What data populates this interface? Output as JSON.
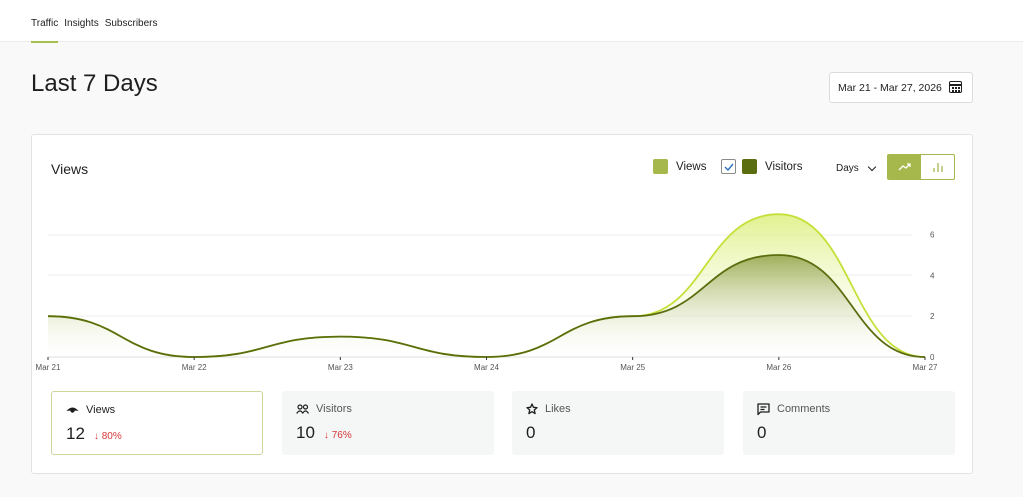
{
  "tabs": [
    {
      "label": "Traffic",
      "active": true
    },
    {
      "label": "Insights",
      "active": false
    },
    {
      "label": "Subscribers",
      "active": false
    }
  ],
  "page_title": "Last 7 Days",
  "date_range": {
    "label": "Mar 21 - Mar 27, 2026",
    "icon": "calendar-icon"
  },
  "chart_card": {
    "title": "Views",
    "legend": [
      {
        "label": "Views",
        "color": "#a6b74b",
        "checkbox": false
      },
      {
        "label": "Visitors",
        "color": "#5a6e0f",
        "checkbox": true,
        "checked": true
      }
    ],
    "period_select": {
      "value": "Days"
    },
    "chart_type_toggle": [
      {
        "name": "line-chart-icon",
        "active": true
      },
      {
        "name": "bar-chart-icon",
        "active": false
      }
    ]
  },
  "chart_data": {
    "type": "area",
    "title": "Views",
    "categories": [
      "Mar 21",
      "Mar 22",
      "Mar 23",
      "Mar 24",
      "Mar 25",
      "Mar 26",
      "Mar 27"
    ],
    "series": [
      {
        "name": "Views",
        "values": [
          2,
          0,
          1,
          0,
          2,
          7,
          0
        ],
        "color": "#c5e03a"
      },
      {
        "name": "Visitors",
        "values": [
          2,
          0,
          1,
          0,
          2,
          5,
          0
        ],
        "color": "#5a6e0f"
      }
    ],
    "yticks": [
      0,
      2,
      4,
      6
    ],
    "ylim": [
      0,
      7
    ],
    "grid": true,
    "y_axis_position": "right",
    "xlabel": "",
    "ylabel": ""
  },
  "stats": [
    {
      "label": "Views",
      "icon": "eye-icon",
      "value": "12",
      "delta": "↓ 80%",
      "selected": true
    },
    {
      "label": "Visitors",
      "icon": "people-icon",
      "value": "10",
      "delta": "↓ 76%",
      "selected": false
    },
    {
      "label": "Likes",
      "icon": "star-icon",
      "value": "0",
      "delta": "",
      "selected": false
    },
    {
      "label": "Comments",
      "icon": "comment-icon",
      "value": "0",
      "delta": "",
      "selected": false
    }
  ]
}
